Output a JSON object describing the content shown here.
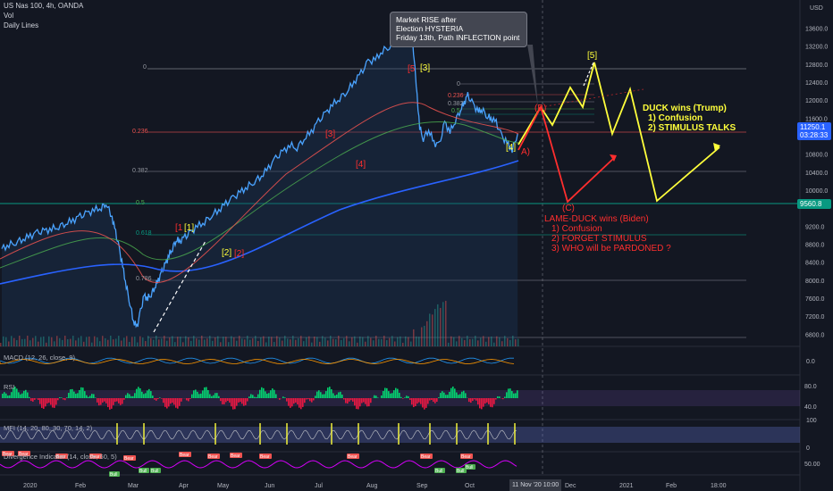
{
  "header": {
    "symbol": "US Nas 100, 4h, OANDA",
    "vol_label": "Vol",
    "lines_label": "Daily Lines"
  },
  "price_axis": {
    "currency": "USD",
    "ticks": [
      "13600.0",
      "13200.0",
      "12800.0",
      "12400.0",
      "12000.0",
      "11600.0",
      "10800.0",
      "10400.0",
      "10000.0",
      "9200.0",
      "8800.0",
      "8400.0",
      "8000.0",
      "7600.0",
      "7200.0",
      "6800.0"
    ],
    "last_price": "11250.1",
    "countdown": "03:28:33",
    "level_tag": "9560.8",
    "colors": {
      "last": "#2962ff",
      "level": "#089981"
    }
  },
  "time_axis": {
    "labels": [
      "2020",
      "Feb",
      "Mar",
      "Apr",
      "May",
      "Jun",
      "Jul",
      "Aug",
      "Sep",
      "Oct",
      "Dec",
      "2021",
      "Feb",
      "18:00"
    ],
    "cursor_label": "11 Nov '20",
    "cursor_time": "10:00"
  },
  "callout": {
    "line1": "Market RISE after",
    "line2": "Election HYSTERIA",
    "line3": "Friday 13th, Path INFLECTION point"
  },
  "fib_labels": [
    "0",
    "0.236",
    "0.382",
    "0.5",
    "0.618",
    "0.786"
  ],
  "fib_labels_right": [
    "0",
    "0.236",
    "0.382",
    "0.5"
  ],
  "waves": {
    "w1_red": "[1",
    "w1_yellow": "[1]",
    "w2_yellow": "[2]",
    "w2_red": "[2]",
    "w3_red_a": "[3]",
    "w3_red_b": "[4]",
    "w5_red": "[5",
    "w3_yellow": "[3]",
    "w4_yellow": "[4]",
    "w5_yellow": "[5]",
    "wa_red": "A)",
    "wb_red": "(B)",
    "wc_red": "(C)"
  },
  "scenarios": {
    "duck": {
      "title": "DUCK wins (Trump)",
      "l1": "1) Confusion",
      "l2": "2) STIMULUS TALKS",
      "color": "#ffff3b"
    },
    "lame_duck": {
      "title": "LAME-DUCK wins (Biden)",
      "l1": "1) Confusion",
      "l2": "2) FORGET STIMULUS",
      "l3": "3) WHO will be PARDONED ?",
      "color": "#ff2e2e"
    }
  },
  "panes": {
    "macd": {
      "label": "MACD (12, 26, close, 9)",
      "tick": "0.0"
    },
    "rsi": {
      "label": "RSI",
      "ticks": [
        "80.0",
        "40.0"
      ]
    },
    "mfi": {
      "label": "MFI (14, 20, 80, 30, 70, 14, 2)",
      "ticks": [
        "100",
        "0"
      ]
    },
    "divergence": {
      "label": "Divergence Indicator (14, close, 60, 5)",
      "tick": "50.00",
      "bear": "Bear",
      "bull": "Bull"
    }
  },
  "chart_data": {
    "type": "line",
    "title": "US Nas 100, 4h, OANDA",
    "xlabel": "",
    "ylabel": "USD",
    "ylim": [
      6550,
      14000
    ],
    "x": [
      0,
      8,
      16,
      24,
      32,
      40,
      48,
      56,
      64,
      72,
      80,
      88,
      96,
      104,
      112,
      117,
      124,
      128,
      132,
      136,
      140,
      144,
      148,
      152,
      156,
      160,
      164,
      168,
      172,
      176,
      180,
      184,
      188,
      192,
      196,
      200,
      206,
      212,
      220,
      228,
      236,
      244,
      252,
      260,
      268,
      276,
      284,
      292,
      300,
      308,
      316,
      324,
      332,
      340,
      348,
      356,
      364,
      372,
      380,
      388,
      396,
      404,
      412,
      420,
      428,
      436,
      444,
      452,
      460,
      466,
      470,
      474,
      480,
      486,
      492,
      498,
      504,
      510,
      516,
      520,
      524,
      530,
      536,
      540,
      546,
      550,
      556,
      562,
      568,
      574,
      580
    ],
    "values": [
      8700,
      8790,
      8850,
      8920,
      8980,
      9050,
      9090,
      9140,
      9200,
      9270,
      9330,
      9410,
      9480,
      9560,
      9620,
      9720,
      9400,
      9050,
      8700,
      8300,
      7880,
      7500,
      7100,
      6950,
      7300,
      7650,
      7600,
      7700,
      7850,
      8000,
      8180,
      8350,
      8560,
      8720,
      8900,
      8870,
      8950,
      9050,
      9200,
      9300,
      9450,
      9560,
      9700,
      9820,
      9950,
      10080,
      10200,
      10320,
      10500,
      10700,
      10850,
      11000,
      10950,
      11150,
      11300,
      11520,
      11700,
      11900,
      12050,
      12200,
      12400,
      12600,
      12850,
      12900,
      13100,
      13200,
      13350,
      13500,
      13850,
      12300,
      11400,
      11150,
      11350,
      11050,
      11000,
      11500,
      11300,
      11550,
      11800,
      11950,
      12100,
      11900,
      11750,
      11800,
      11650,
      11600,
      11500,
      11200,
      11050,
      10900,
      11250
    ],
    "price_ticks": [
      13600,
      13200,
      12800,
      12400,
      12000,
      11600,
      10800,
      10400,
      10000,
      9200,
      8800,
      8400,
      8000,
      7600,
      7200,
      6800
    ]
  }
}
